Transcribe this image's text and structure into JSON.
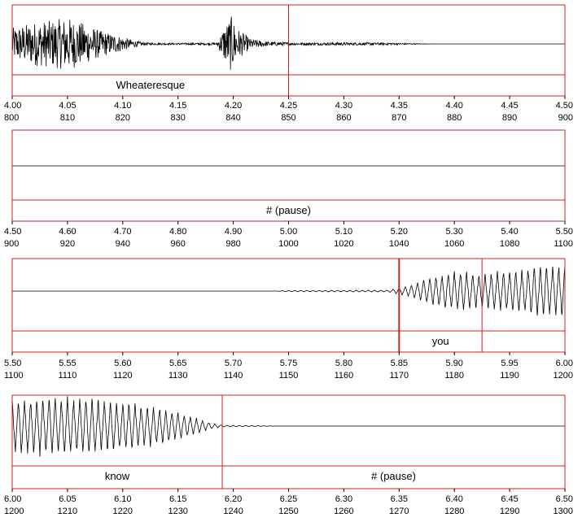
{
  "colors": {
    "frame": "#d21f1f",
    "waveform": "#000000",
    "text": "#000000",
    "background": "#ffffff"
  },
  "chart_data": [
    {
      "type": "line",
      "name": "waveform-panel",
      "time_ticks": [
        "4.00",
        "4.05",
        "4.10",
        "4.15",
        "4.20",
        "4.25",
        "4.30",
        "4.35",
        "4.40",
        "4.45",
        "4.50"
      ],
      "frame_ticks": [
        "800",
        "810",
        "820",
        "830",
        "840",
        "850",
        "860",
        "870",
        "880",
        "890",
        "900"
      ],
      "t_range": [
        4.0,
        4.5
      ],
      "boundaries": [
        4.25
      ],
      "segments": [
        {
          "label": "Wheateresque",
          "start": 4.0,
          "end": 4.25
        }
      ],
      "envelope": [
        {
          "t": 4.0,
          "amp": 0.55
        },
        {
          "t": 4.02,
          "amp": 0.75
        },
        {
          "t": 4.035,
          "amp": 0.8
        },
        {
          "t": 4.05,
          "amp": 0.9
        },
        {
          "t": 4.065,
          "amp": 0.7
        },
        {
          "t": 4.08,
          "amp": 0.45
        },
        {
          "t": 4.095,
          "amp": 0.3
        },
        {
          "t": 4.11,
          "amp": 0.12
        },
        {
          "t": 4.12,
          "amp": 0.04
        },
        {
          "t": 4.15,
          "amp": 0.03
        },
        {
          "t": 4.185,
          "amp": 0.04
        },
        {
          "t": 4.192,
          "amp": 0.6
        },
        {
          "t": 4.198,
          "amp": 0.95
        },
        {
          "t": 4.205,
          "amp": 0.5
        },
        {
          "t": 4.215,
          "amp": 0.18
        },
        {
          "t": 4.23,
          "amp": 0.08
        },
        {
          "t": 4.26,
          "amp": 0.04
        },
        {
          "t": 4.3,
          "amp": 0.05
        },
        {
          "t": 4.34,
          "amp": 0.04
        },
        {
          "t": 4.36,
          "amp": 0.02
        },
        {
          "t": 4.38,
          "amp": 0.0
        },
        {
          "t": 4.5,
          "amp": 0.0
        }
      ],
      "waveform_style": "noise"
    },
    {
      "type": "line",
      "name": "waveform-panel",
      "time_ticks": [
        "4.50",
        "4.60",
        "4.70",
        "4.80",
        "4.90",
        "5.00",
        "5.10",
        "5.20",
        "5.30",
        "5.40",
        "5.50"
      ],
      "frame_ticks": [
        "900",
        "920",
        "940",
        "960",
        "980",
        "1000",
        "1020",
        "1040",
        "1060",
        "1080",
        "1100"
      ],
      "t_range": [
        4.5,
        5.5
      ],
      "boundaries": [],
      "segments": [
        {
          "label": "# (pause)",
          "start": 4.5,
          "end": 5.5
        }
      ],
      "envelope": [
        {
          "t": 4.5,
          "amp": 0.0
        },
        {
          "t": 5.5,
          "amp": 0.0
        }
      ],
      "waveform_style": "flat"
    },
    {
      "type": "line",
      "name": "waveform-panel",
      "time_ticks": [
        "5.50",
        "5.55",
        "5.60",
        "5.65",
        "5.70",
        "5.75",
        "5.80",
        "5.85",
        "5.90",
        "5.95",
        "6.00"
      ],
      "frame_ticks": [
        "1100",
        "1110",
        "1120",
        "1130",
        "1140",
        "1150",
        "1160",
        "1170",
        "1180",
        "1190",
        "1200"
      ],
      "t_range": [
        5.5,
        6.0
      ],
      "boundaries": [
        5.85,
        5.925
      ],
      "segments": [
        {
          "label": "you",
          "start": 5.85,
          "end": 5.925
        }
      ],
      "envelope": [
        {
          "t": 5.5,
          "amp": 0.0
        },
        {
          "t": 5.74,
          "amp": 0.0
        },
        {
          "t": 5.745,
          "amp": 0.02
        },
        {
          "t": 5.84,
          "amp": 0.03
        },
        {
          "t": 5.86,
          "amp": 0.18
        },
        {
          "t": 5.88,
          "amp": 0.45
        },
        {
          "t": 5.9,
          "amp": 0.62
        },
        {
          "t": 5.925,
          "amp": 0.55
        },
        {
          "t": 5.95,
          "amp": 0.65
        },
        {
          "t": 5.975,
          "amp": 0.75
        },
        {
          "t": 6.0,
          "amp": 0.85
        }
      ],
      "waveform_style": "periodic"
    },
    {
      "type": "line",
      "name": "waveform-panel",
      "time_ticks": [
        "6.00",
        "6.05",
        "6.10",
        "6.15",
        "6.20",
        "6.25",
        "6.30",
        "6.35",
        "6.40",
        "6.45",
        "6.50"
      ],
      "frame_ticks": [
        "1200",
        "1210",
        "1220",
        "1230",
        "1240",
        "1250",
        "1260",
        "1270",
        "1280",
        "1290",
        "1300"
      ],
      "t_range": [
        6.0,
        6.5
      ],
      "boundaries": [
        6.19
      ],
      "segments": [
        {
          "label": "know",
          "start": 6.0,
          "end": 6.19
        },
        {
          "label": "# (pause)",
          "start": 6.19,
          "end": 6.5
        }
      ],
      "envelope": [
        {
          "t": 6.0,
          "amp": 0.9
        },
        {
          "t": 6.03,
          "amp": 0.95
        },
        {
          "t": 6.07,
          "amp": 0.9
        },
        {
          "t": 6.11,
          "amp": 0.75
        },
        {
          "t": 6.14,
          "amp": 0.55
        },
        {
          "t": 6.165,
          "amp": 0.3
        },
        {
          "t": 6.18,
          "amp": 0.1
        },
        {
          "t": 6.19,
          "amp": 0.03
        },
        {
          "t": 6.23,
          "amp": 0.01
        },
        {
          "t": 6.24,
          "amp": 0.0
        },
        {
          "t": 6.5,
          "amp": 0.0
        }
      ],
      "waveform_style": "periodic"
    }
  ]
}
